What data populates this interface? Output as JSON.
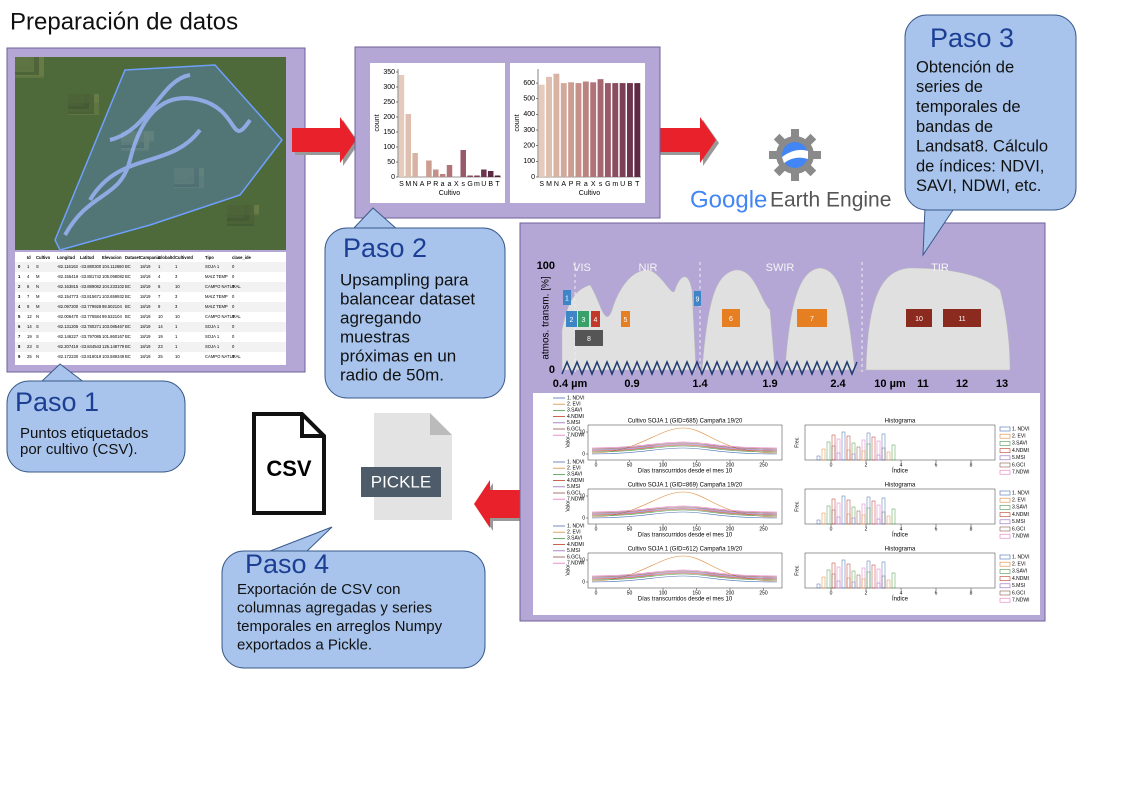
{
  "title": "Preparación de datos",
  "steps": [
    {
      "heading": "Paso 1",
      "lines": [
        "Puntos etiquetados",
        "por cultivo (CSV)."
      ]
    },
    {
      "heading": "Paso 2",
      "lines": [
        "Upsampling para",
        "balancear dataset",
        "agregando",
        "muestras",
        "próximas en un",
        "radio de 50m."
      ]
    },
    {
      "heading": "Paso 3",
      "lines": [
        "Obtención de",
        "series de",
        "temporales de",
        "bandas de",
        "Landsat8. Cálculo",
        "de índices: NDVI,",
        "SAVI, NDWI, etc."
      ]
    },
    {
      "heading": "Paso 4",
      "lines": [
        "Exportación de CSV con",
        "columnas agregadas y series",
        "temporales en arreglos Numpy",
        "exportados a Pickle."
      ]
    }
  ],
  "table": {
    "headers": [
      "Id",
      "Cultivo",
      "Longitud",
      "Latitud",
      "Elevacion",
      "Dataset",
      "Campania",
      "GlobalId",
      "CultivoId",
      "Tipo",
      "clase_ide"
    ],
    "rows": [
      [
        "0",
        "1",
        "S",
        "-82.116163",
        "-33.880300",
        "104.112660",
        "BC",
        "18/19",
        "1",
        "1",
        "SOJA 1",
        "0"
      ],
      [
        "1",
        "4",
        "M",
        "-82.155419",
        "-33.881742",
        "105.098082",
        "BC",
        "18/19",
        "4",
        "3",
        "MAIZ TEMP",
        "0"
      ],
      [
        "2",
        "6",
        "N",
        "-82.163815",
        "-33.889082",
        "104.233102",
        "BC",
        "18/19",
        "6",
        "10",
        "CAMPO NATURAL",
        "0"
      ],
      [
        "3",
        "7",
        "M",
        "-82.154773",
        "-33.815671",
        "103.659932",
        "BC",
        "18/19",
        "7",
        "3",
        "MAIZ TEMP",
        "0"
      ],
      [
        "4",
        "9",
        "M",
        "-82.097200",
        "-33.779928",
        "98.502104",
        "BC",
        "18/19",
        "9",
        "3",
        "MAIZ TEMP",
        "0"
      ],
      [
        "5",
        "12",
        "N",
        "-82.006470",
        "-33.775584",
        "99.532104",
        "BC",
        "18/19",
        "10",
        "10",
        "CAMPO NATURAL",
        "0"
      ],
      [
        "6",
        "14",
        "S",
        "-82.131205",
        "-33.780271",
        "103.085467",
        "BC",
        "18/19",
        "14",
        "1",
        "SOJA 1",
        "0"
      ],
      [
        "7",
        "19",
        "S",
        "-82.146227",
        "-33.797085",
        "101.860167",
        "BC",
        "18/19",
        "19",
        "1",
        "SOJA 1",
        "0"
      ],
      [
        "8",
        "23",
        "S",
        "-82.207419",
        "-33.844543",
        "125.148779",
        "BC",
        "18/19",
        "23",
        "1",
        "SOJA 1",
        "0"
      ],
      [
        "9",
        "25",
        "N",
        "-82.172230",
        "-33.816019",
        "103.589349",
        "BC",
        "18/19",
        "25",
        "10",
        "CAMPO NATURAL",
        "0"
      ]
    ]
  },
  "bar_charts": [
    {
      "type": "bar",
      "categories": [
        "S",
        "M",
        "N",
        "A",
        "P",
        "R",
        "a",
        "a",
        "X",
        "s",
        "G",
        "m",
        "U",
        "B",
        "T"
      ],
      "values": [
        340,
        210,
        80,
        0,
        55,
        25,
        10,
        40,
        0,
        90,
        5,
        5,
        25,
        20,
        5
      ],
      "ylim": [
        0,
        360
      ],
      "yticks": [
        0,
        50,
        100,
        150,
        200,
        250,
        300,
        350
      ],
      "ylabel": "count",
      "xlabel": "Cultivo",
      "colors": [
        "#e6cbbd",
        "#dfbfb0",
        "#d8b3a4",
        "#d2a89a",
        "#cc9d91",
        "#c49088",
        "#bb8380",
        "#b07478",
        "#a56770",
        "#985a68",
        "#8a4c5f",
        "#7c4056",
        "#6d344d",
        "#5d2a43",
        "#4b2039"
      ]
    },
    {
      "type": "bar",
      "categories": [
        "S",
        "M",
        "N",
        "A",
        "P",
        "R",
        "a",
        "X",
        "s",
        "G",
        "m",
        "U",
        "B",
        "T"
      ],
      "values": [
        590,
        640,
        660,
        600,
        605,
        600,
        610,
        605,
        625,
        600,
        600,
        600,
        600,
        600
      ],
      "ylim": [
        0,
        690
      ],
      "yticks": [
        0,
        100,
        200,
        300,
        400,
        500,
        600
      ],
      "ylabel": "count",
      "xlabel": "Cultivo",
      "colors": [
        "#e6cbbd",
        "#dfbfb0",
        "#d8b3a4",
        "#d2a89a",
        "#cc9d91",
        "#c49088",
        "#bb8380",
        "#b07478",
        "#a56770",
        "#985a68",
        "#8a4c5f",
        "#7c4056",
        "#6d344d",
        "#5d2a43"
      ]
    }
  ],
  "logos": {
    "gee_google": "Google",
    "gee_rest": "Earth Engine",
    "csv": "CSV",
    "pickle": "PICKLE"
  },
  "spectrum": {
    "ylabel": "atmos. transm. [%]",
    "yticks": [
      "100",
      "0"
    ],
    "regions": [
      "VIS",
      "NIR",
      "SWIR",
      "TIR"
    ],
    "xticks": [
      "0.4 µm",
      "0.9",
      "1.4",
      "1.9",
      "2.4",
      "10 µm",
      "11",
      "12",
      "13"
    ],
    "bands": [
      "1",
      "2",
      "3",
      "4",
      "5",
      "6",
      "7",
      "8",
      "9",
      "10",
      "11"
    ],
    "band_colors": [
      "#3d85c6",
      "#3d85c6",
      "#38a169",
      "#c0392b",
      "#e67e22",
      "#e67e22",
      "#e67e22",
      "#555555",
      "#3d85c6",
      "#8b2a1f",
      "#8b2a1f"
    ]
  },
  "timeseries": {
    "titles": [
      "Cultivo SOJA 1 (GID=685) Campaña 19/20",
      "Cultivo SOJA 1 (GID=869) Campaña 19/20",
      "Cultivo SOJA 1 (GID=612) Campaña 19/20"
    ],
    "xlabel": "Días transcurridos desde el mes 10",
    "ylabel": "Valor",
    "xticks": [
      0,
      50,
      100,
      150,
      200,
      250
    ],
    "yticks": [
      0,
      10
    ],
    "hist_title": "Histograma",
    "hist_xlabel": "Índice",
    "hist_ylabel": "Frec.",
    "hist_xticks": [
      0,
      2,
      4,
      6,
      8
    ],
    "legend": [
      "1. NDVI",
      "2. EVI",
      "3.SAVI",
      "4.NDMI",
      "5.MSI",
      "6.GCI",
      "7.NDWI"
    ],
    "legend_colors": [
      "#4a6fb5",
      "#e08a3c",
      "#4a9a4a",
      "#c0392b",
      "#8e6bbf",
      "#8c564b",
      "#e377c2"
    ]
  }
}
